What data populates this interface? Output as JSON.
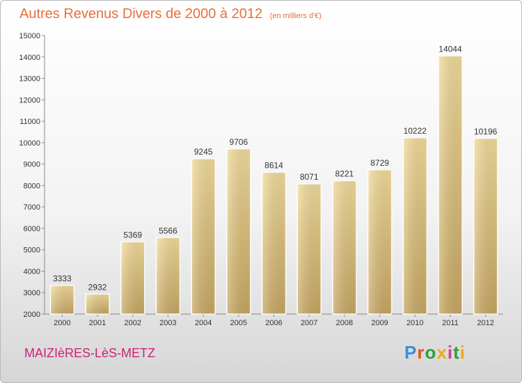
{
  "header": {
    "title": "Autres Revenus Divers de 2000 à 2012",
    "subtitle": "(en milliers d'€)"
  },
  "footer": {
    "city": "MAIZIèRES-LèS-METZ",
    "brand": "Proxiti",
    "brand_colors": [
      "#3a8fd8",
      "#e8531e",
      "#2e9e3e",
      "#f0a81c",
      "#d63a8a",
      "#2e9e3e",
      "#f0a81c"
    ]
  },
  "chart_data": {
    "type": "bar",
    "title": "Autres Revenus Divers de 2000 à 2012",
    "subtitle": "(en milliers d'€)",
    "xlabel": "",
    "ylabel": "",
    "categories": [
      "2000",
      "2001",
      "2002",
      "2003",
      "2004",
      "2005",
      "2006",
      "2007",
      "2008",
      "2009",
      "2010",
      "2011",
      "2012"
    ],
    "values": [
      3333,
      2932,
      5369,
      5566,
      9245,
      9706,
      8614,
      8071,
      8221,
      8729,
      10222,
      14044,
      10196
    ],
    "ylim": [
      2000,
      15000
    ],
    "yticks": [
      2000,
      3000,
      4000,
      5000,
      6000,
      7000,
      8000,
      9000,
      10000,
      11000,
      12000,
      13000,
      14000,
      15000
    ],
    "grid": false,
    "bar_color_top": "#f3dc9a",
    "bar_color_bottom": "#c8a862"
  }
}
